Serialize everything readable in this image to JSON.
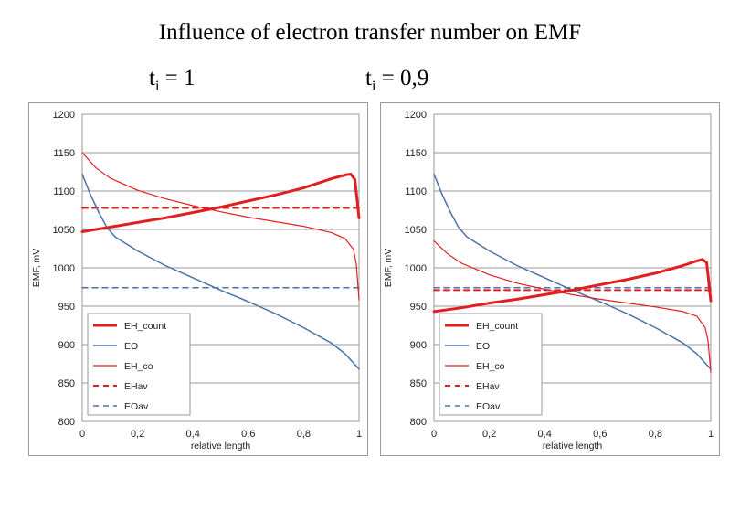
{
  "header": {
    "title": "Influence of electron transfer number on EMF",
    "sub1": {
      "pre": "t",
      "sub": "i",
      "post": " = 1"
    },
    "sub2": {
      "pre": "t",
      "sub": "i",
      "post": " = 0,9"
    }
  },
  "chart_data": [
    {
      "type": "line",
      "xlabel": "relative length",
      "ylabel": "EMF, mV",
      "xlim": [
        0,
        1
      ],
      "ylim": [
        800,
        1200
      ],
      "xticks": [
        "0",
        "0,2",
        "0,4",
        "0,6",
        "0,8",
        "1"
      ],
      "yticks": [
        "800",
        "850",
        "900",
        "950",
        "1000",
        "1050",
        "1100",
        "1150",
        "1200"
      ],
      "grid": "horizontal",
      "legend_position": "bottom-left",
      "series": [
        {
          "name": "EH_count",
          "color": "#e02020",
          "style": "solid",
          "width": 3,
          "x": [
            0,
            0.1,
            0.2,
            0.3,
            0.4,
            0.5,
            0.6,
            0.7,
            0.8,
            0.9,
            0.95,
            0.97,
            0.985,
            1
          ],
          "y": [
            1047,
            1053,
            1059,
            1065,
            1072,
            1079,
            1087,
            1095,
            1104,
            1116,
            1121,
            1122,
            1115,
            1065
          ]
        },
        {
          "name": "EO",
          "color": "#4a72a8",
          "style": "solid",
          "width": 1.5,
          "x": [
            0,
            0.03,
            0.06,
            0.09,
            0.12,
            0.2,
            0.3,
            0.4,
            0.5,
            0.6,
            0.7,
            0.8,
            0.9,
            0.95,
            1
          ],
          "y": [
            1122,
            1095,
            1072,
            1052,
            1040,
            1022,
            1003,
            987,
            971,
            956,
            940,
            922,
            902,
            888,
            868
          ]
        },
        {
          "name": "EH_co",
          "color": "#e02020",
          "style": "solid",
          "width": 1.2,
          "x": [
            0,
            0.05,
            0.1,
            0.2,
            0.3,
            0.4,
            0.5,
            0.6,
            0.7,
            0.8,
            0.9,
            0.95,
            0.98,
            0.99,
            1
          ],
          "y": [
            1150,
            1130,
            1117,
            1101,
            1090,
            1081,
            1073,
            1066,
            1060,
            1054,
            1046,
            1038,
            1024,
            1005,
            958
          ]
        },
        {
          "name": "EHav",
          "color": "#e02020",
          "style": "dashed",
          "width": 2,
          "x": [
            0,
            1
          ],
          "y": [
            1078,
            1078
          ]
        },
        {
          "name": "EOav",
          "color": "#4a72a8",
          "style": "dashed",
          "width": 1.5,
          "x": [
            0,
            1
          ],
          "y": [
            974,
            974
          ]
        }
      ]
    },
    {
      "type": "line",
      "xlabel": "relative length",
      "ylabel": "EMF, mV",
      "xlim": [
        0,
        1
      ],
      "ylim": [
        800,
        1200
      ],
      "xticks": [
        "0",
        "0,2",
        "0,4",
        "0,6",
        "0,8",
        "1"
      ],
      "yticks": [
        "800",
        "850",
        "900",
        "950",
        "1000",
        "1050",
        "1100",
        "1150",
        "1200"
      ],
      "grid": "horizontal",
      "legend_position": "bottom-left",
      "series": [
        {
          "name": "EH_count",
          "color": "#e02020",
          "style": "solid",
          "width": 3,
          "x": [
            0,
            0.1,
            0.2,
            0.3,
            0.4,
            0.5,
            0.6,
            0.7,
            0.8,
            0.9,
            0.95,
            0.97,
            0.985,
            1
          ],
          "y": [
            943,
            948,
            954,
            959,
            965,
            971,
            978,
            985,
            993,
            1003,
            1009,
            1011,
            1007,
            957
          ]
        },
        {
          "name": "EO",
          "color": "#4a72a8",
          "style": "solid",
          "width": 1.5,
          "x": [
            0,
            0.03,
            0.06,
            0.09,
            0.12,
            0.2,
            0.3,
            0.4,
            0.5,
            0.6,
            0.7,
            0.8,
            0.9,
            0.95,
            1
          ],
          "y": [
            1122,
            1095,
            1072,
            1052,
            1040,
            1022,
            1003,
            987,
            971,
            956,
            940,
            922,
            902,
            888,
            868
          ]
        },
        {
          "name": "EH_co",
          "color": "#e02020",
          "style": "solid",
          "width": 1.2,
          "x": [
            0,
            0.05,
            0.1,
            0.2,
            0.3,
            0.4,
            0.5,
            0.6,
            0.7,
            0.8,
            0.9,
            0.95,
            0.98,
            0.99,
            1
          ],
          "y": [
            1035,
            1018,
            1006,
            991,
            980,
            972,
            965,
            959,
            954,
            949,
            943,
            937,
            922,
            905,
            864
          ]
        },
        {
          "name": "EHav",
          "color": "#e02020",
          "style": "dashed",
          "width": 2,
          "x": [
            0,
            1
          ],
          "y": [
            971,
            971
          ]
        },
        {
          "name": "EOav",
          "color": "#4a72a8",
          "style": "dashed",
          "width": 1.5,
          "x": [
            0,
            1
          ],
          "y": [
            974,
            974
          ]
        }
      ]
    }
  ]
}
